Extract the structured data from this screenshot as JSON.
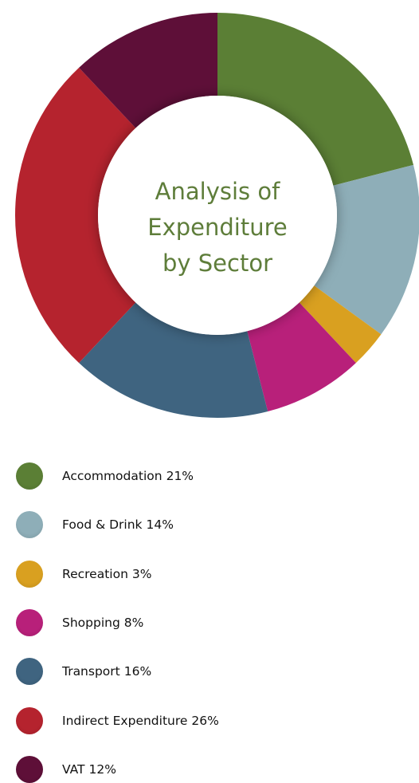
{
  "chart_data": {
    "type": "donut",
    "title": "Analysis of Expenditure by Sector",
    "categories": [
      "Accommodation",
      "Food & Drink",
      "Recreation",
      "Shopping",
      "Transport",
      "Indirect Expenditure",
      "VAT"
    ],
    "values": [
      21,
      14,
      3,
      8,
      16,
      26,
      12
    ],
    "value_labels": [
      "21%",
      "14%",
      "3%",
      "8%",
      "16%",
      "26%",
      "12%"
    ],
    "colors": [
      "#5b7f35",
      "#8eaeb8",
      "#d9a020",
      "#b8207a",
      "#3f6480",
      "#b5232e",
      "#5e0f38"
    ],
    "legend": "bottom"
  }
}
